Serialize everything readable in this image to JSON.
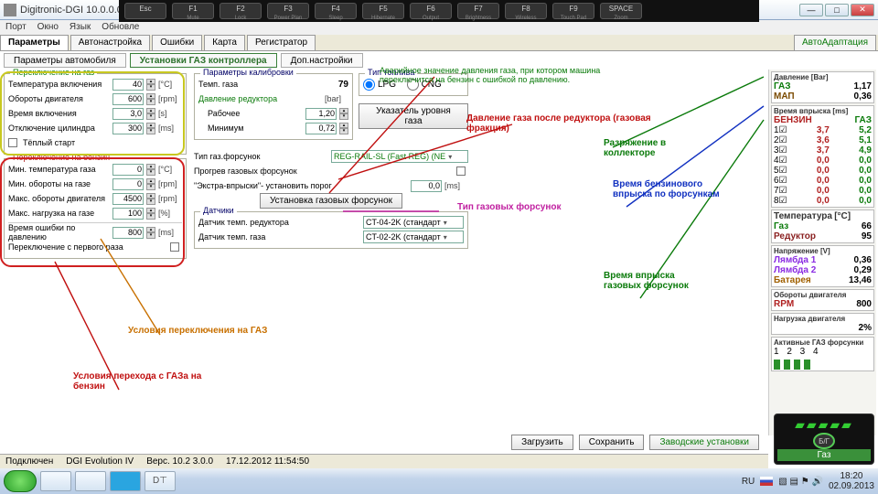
{
  "window": {
    "title": "Digitronic-DGI 10.0.0.0",
    "menus": [
      "Порт",
      "Окно",
      "Язык",
      "Обновле"
    ]
  },
  "fnkeys": [
    {
      "k": "Esc",
      "l": ""
    },
    {
      "k": "F1",
      "l": "Mute"
    },
    {
      "k": "F2",
      "l": "Lock"
    },
    {
      "k": "F3",
      "l": "Power Plan"
    },
    {
      "k": "F4",
      "l": "Sleep"
    },
    {
      "k": "F5",
      "l": "Hibernate"
    },
    {
      "k": "F6",
      "l": "Output"
    },
    {
      "k": "F7",
      "l": "Brightness"
    },
    {
      "k": "F8",
      "l": "Wireless"
    },
    {
      "k": "F9",
      "l": "Touch Pad"
    },
    {
      "k": "SPACE",
      "l": "Zoom"
    }
  ],
  "tabs": [
    "Параметры",
    "Автонастройка",
    "Ошибки",
    "Карта",
    "Регистратор"
  ],
  "tab_extra": "АвтоАдаптация",
  "subtabs": {
    "a": "Параметры автомобиля",
    "b": "Установки ГАЗ контроллера",
    "c": "Доп.настройки"
  },
  "switch_gas": {
    "title": "Переключение на газ",
    "rows": [
      {
        "l": "Температура включения",
        "v": "40",
        "u": "[°C]"
      },
      {
        "l": "Обороты двигателя",
        "v": "600",
        "u": "[rpm]"
      },
      {
        "l": "Время включения",
        "v": "3,0",
        "u": "[s]"
      },
      {
        "l": "Отключение цилиндра",
        "v": "300",
        "u": "[ms]"
      }
    ],
    "warm": "Тёплый старт"
  },
  "switch_benz": {
    "title": "Переключение на бензин",
    "rows": [
      {
        "l": "Мин. температура газа",
        "v": "0",
        "u": "[°C]"
      },
      {
        "l": "Мин. обороты на газе",
        "v": "0",
        "u": "[rpm]"
      },
      {
        "l": "Макс. обороты двигателя",
        "v": "4500",
        "u": "[rpm]"
      },
      {
        "l": "Макс. нагрузка на газе",
        "v": "100",
        "u": "[%]"
      }
    ],
    "err_row": {
      "l": "Время ошибки по давлению",
      "v": "800",
      "u": "[ms]"
    },
    "first": "Переключение с первого раза"
  },
  "calib": {
    "title": "Параметры калибровки",
    "temp": {
      "l": "Темп. газа",
      "v": "79"
    },
    "press": {
      "l": "Давление редуктора",
      "u": "[bar]"
    },
    "work": {
      "l": "Рабочее",
      "v": "1,20"
    },
    "min": {
      "l": "Минимум",
      "v": "0,72"
    }
  },
  "fuel": {
    "title": "Тип топлива",
    "lpg": "LPG",
    "cng": "CNG"
  },
  "level": "Указатель уровня газа",
  "inj_type": {
    "l": "Тип газ.форсунок",
    "v": "REG-RAIL-SL (Fast REG)   (NE"
  },
  "warmup": "Прогрев газовых форсунок",
  "extra": {
    "l": "\"Экстра-впрыски\"- установить порог",
    "v": "0,0",
    "u": "[ms]"
  },
  "inj_set": "Установка газовых форсунок",
  "sensors": {
    "title": "Датчики",
    "red": {
      "l": "Датчик темп. редуктора",
      "v": "CT-04-2K (стандарт"
    },
    "gas": {
      "l": "Датчик темп. газа",
      "v": "CT-02-2K (стандарт"
    }
  },
  "buttons": {
    "load": "Загрузить",
    "save": "Сохранить",
    "factory": "Заводские установки"
  },
  "status": {
    "conn": "Подключен",
    "dgi": "DGI Evolution IV",
    "ver": "Верс. 10.2  3.0.0",
    "date": "17.12.2012 11:54:50"
  },
  "right": {
    "press": {
      "t": "Давление [Bar]",
      "gas": "ГАЗ",
      "gasv": "1,17",
      "map": "МАП",
      "mapv": "0,36"
    },
    "inj": {
      "t": "Время впрыска [ms]",
      "benz": "БЕНЗИН",
      "gaz": "ГАЗ",
      "rows": [
        [
          "1",
          "3,7",
          "5,2"
        ],
        [
          "2",
          "3,6",
          "5,1"
        ],
        [
          "3",
          "3,7",
          "4,9"
        ],
        [
          "4",
          "0,0",
          "0,0"
        ],
        [
          "5",
          "0,0",
          "0,0"
        ],
        [
          "6",
          "0,0",
          "0,0"
        ],
        [
          "7",
          "0,0",
          "0,0"
        ],
        [
          "8",
          "0,0",
          "0,0"
        ]
      ]
    },
    "temp": {
      "t": "Температура",
      "u": "[°C]",
      "gas": "Газ",
      "gasv": "66",
      "red": "Редуктор",
      "redv": "95"
    },
    "volt": {
      "t": "Напряжение [V]",
      "l1": "Лямбда 1",
      "l1v": "0,36",
      "l2": "Лямбда 2",
      "l2v": "0,29",
      "bat": "Батарея",
      "batv": "13,46"
    },
    "rpm": {
      "t": "Обороты двигателя",
      "l": "RPM",
      "v": "800"
    },
    "load": {
      "t": "Нагрузка двигателя",
      "v": "2%"
    },
    "act": {
      "t": "Активные ГАЗ форсунки",
      "n": "1  2  3  4"
    }
  },
  "notes": {
    "alarm": "Аварийное значение давления газа, при котором машина переключится на бензин с ошибкой по давлению.",
    "afterred": "Давление газа после редуктора (газовая фракция)",
    "vac": "Разряжение в коллекторе",
    "injtype": "Тип газовых форсунок",
    "benzinj": "Время бензинового впрыска по форсункам",
    "gasinjt": "Время впрыска газовых форсунок",
    "condgas": "Условия переключения на ГАЗ",
    "condbenz": "Условия перехода с ГАЗа на бензин"
  },
  "gasbtn": "Газ",
  "clock": {
    "t": "18:20",
    "d": "02.09.2013",
    "lang": "RU"
  }
}
